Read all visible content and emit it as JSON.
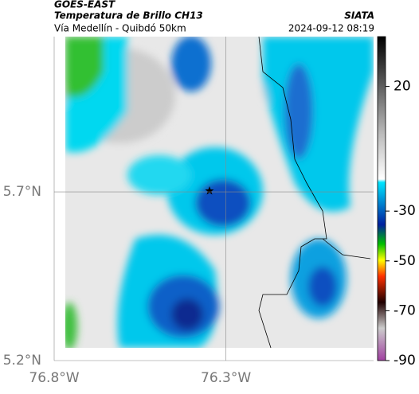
{
  "header": {
    "satellite": "GOES-EAST",
    "product": "Temperatura de Brillo CH13",
    "agency": "SIATA",
    "region": "Vía Medellín - Quibdó 50km",
    "timestamp": "2024-09-12 08:19"
  },
  "map": {
    "lonlim": [
      -76.8,
      -75.87
    ],
    "latlim": [
      5.2,
      6.16
    ],
    "lonticks": [
      {
        "value": -76.8,
        "label": "76.8°W"
      },
      {
        "value": -76.3,
        "label": "76.3°W"
      }
    ],
    "latticks": [
      {
        "value": 5.7,
        "label": "5.7°N"
      },
      {
        "value": 5.2,
        "label": "5.2°N"
      }
    ]
  },
  "colorbar": {
    "lim": [
      -90,
      40
    ],
    "ticks": [
      20,
      -30,
      -50,
      -70,
      -90
    ]
  }
}
